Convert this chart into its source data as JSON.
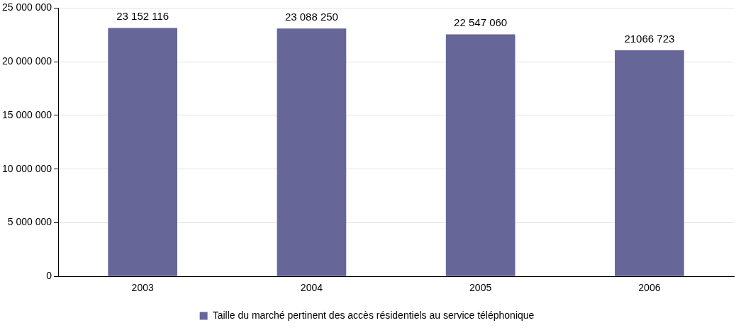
{
  "chart_data": {
    "type": "bar",
    "categories": [
      "2003",
      "2004",
      "2005",
      "2006"
    ],
    "series": [
      {
        "name": "Taille du marché pertinent des accès résidentiels au service téléphonique",
        "color": "#666699",
        "values": [
          23152116,
          23088250,
          22547060,
          21066723
        ],
        "value_labels": [
          "23 152 116",
          "23 088 250",
          "22 547 060",
          "21066 723"
        ]
      }
    ],
    "ylim": [
      0,
      25000000
    ],
    "yticks": [
      0,
      {
        "value": 5000000,
        "label": "5 000 000"
      },
      {
        "value": 10000000,
        "label": "10 000 000"
      },
      {
        "value": 15000000,
        "label": "15 000 000"
      },
      {
        "value": 20000000,
        "label": "20 000 000"
      },
      {
        "value": 25000000,
        "label": "25 000 000"
      }
    ],
    "grid": "y",
    "legend": "bottom"
  }
}
